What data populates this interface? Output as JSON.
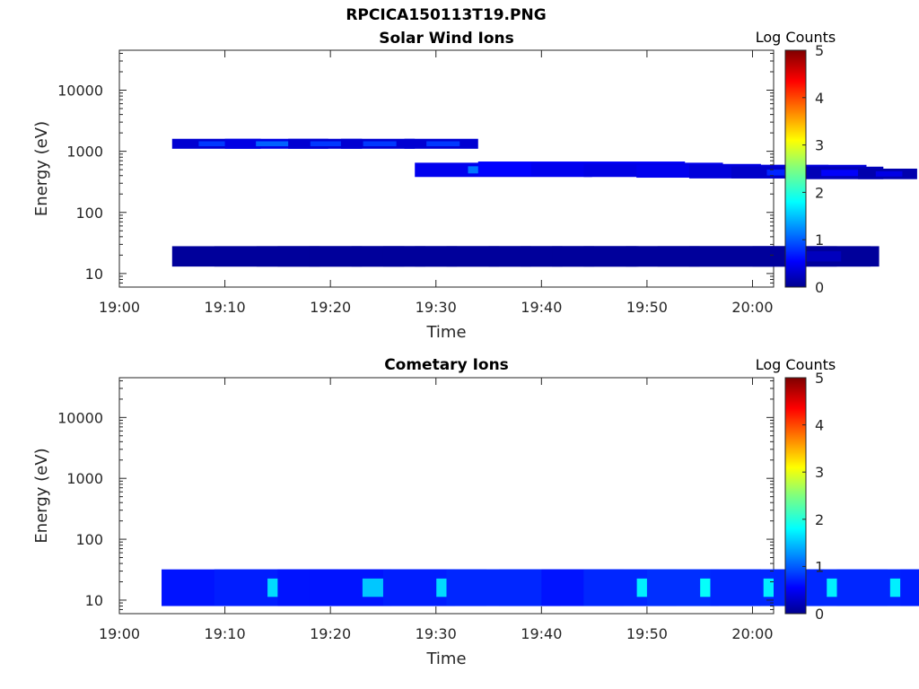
{
  "figure": {
    "filename": "RPCICA150113T19.PNG"
  },
  "chart_data": [
    {
      "type": "heatmap",
      "title": "Solar Wind Ions",
      "xlabel": "Time",
      "ylabel": "Energy (eV)",
      "xlim": [
        "19:00",
        "20:02"
      ],
      "ylim": [
        6,
        45000
      ],
      "yscale": "log",
      "x_ticks": [
        "19:00",
        "19:10",
        "19:20",
        "19:30",
        "19:40",
        "19:50",
        "20:00"
      ],
      "y_ticks": [
        "10",
        "100",
        "1000",
        "10000"
      ],
      "colorbar": {
        "label": "Log Counts",
        "range": [
          0,
          5
        ],
        "ticks": [
          "0",
          "1",
          "2",
          "3",
          "4",
          "5"
        ],
        "colormap": "jet"
      },
      "blocks": [
        {
          "t": 19.05,
          "w": 1.0,
          "e_lo": 13,
          "e_hi": 28,
          "v": 0.3
        },
        {
          "t": 19.09,
          "w": 1.0,
          "e_lo": 13,
          "e_hi": 28,
          "v": 0.3
        },
        {
          "t": 19.13,
          "w": 1.0,
          "e_lo": 13,
          "e_hi": 28,
          "v": 0.3
        },
        {
          "t": 19.15,
          "w": 1.0,
          "e_lo": 13,
          "e_hi": 28,
          "v": 0.3
        },
        {
          "t": 19.18,
          "w": 1.0,
          "e_lo": 13,
          "e_hi": 28,
          "v": 0.3
        },
        {
          "t": 19.22,
          "w": 1.0,
          "e_lo": 13,
          "e_hi": 28,
          "v": 0.3
        },
        {
          "t": 19.25,
          "w": 1.0,
          "e_lo": 13,
          "e_hi": 28,
          "v": 0.3
        },
        {
          "t": 19.28,
          "w": 1.0,
          "e_lo": 13,
          "e_hi": 28,
          "v": 0.3
        },
        {
          "t": 19.31,
          "w": 1.0,
          "e_lo": 13,
          "e_hi": 28,
          "v": 0.3
        },
        {
          "t": 19.35,
          "w": 1.0,
          "e_lo": 13,
          "e_hi": 28,
          "v": 0.3
        },
        {
          "t": 19.38,
          "w": 0.8,
          "e_lo": 13,
          "e_hi": 28,
          "v": 0.3
        },
        {
          "t": 19.41,
          "w": 1.0,
          "e_lo": 13,
          "e_hi": 28,
          "v": 0.3
        },
        {
          "t": 19.44,
          "w": 1.0,
          "e_lo": 13,
          "e_hi": 28,
          "v": 0.3
        },
        {
          "t": 19.48,
          "w": 1.0,
          "e_lo": 13,
          "e_hi": 28,
          "v": 0.3
        },
        {
          "t": 19.51,
          "w": 1.0,
          "e_lo": 13,
          "e_hi": 28,
          "v": 0.3
        },
        {
          "t": 19.54,
          "w": 1.0,
          "e_lo": 13,
          "e_hi": 28,
          "v": 0.3
        },
        {
          "t": 19.58,
          "w": 1.0,
          "e_lo": 13,
          "e_hi": 28,
          "v": 0.3
        },
        {
          "t": 20.0,
          "w": 0.8,
          "e_lo": 13,
          "e_hi": 28,
          "v": 0.3
        },
        {
          "t": 19.05,
          "w": 0.6,
          "e_lo": 1100,
          "e_hi": 1600,
          "v": 0.9
        },
        {
          "t": 19.1,
          "w": 0.7,
          "e_lo": 1100,
          "e_hi": 1600,
          "v": 1.1
        },
        {
          "t": 19.16,
          "w": 0.5,
          "e_lo": 1100,
          "e_hi": 1600,
          "v": 0.9
        },
        {
          "t": 19.21,
          "w": 0.5,
          "e_lo": 1100,
          "e_hi": 1600,
          "v": 0.9
        },
        {
          "t": 19.27,
          "w": 0.5,
          "e_lo": 1100,
          "e_hi": 1600,
          "v": 0.9
        },
        {
          "t": 19.28,
          "w": 1.2,
          "e_lo": 380,
          "e_hi": 650,
          "v": 1.2
        },
        {
          "t": 19.34,
          "w": 1.4,
          "e_lo": 400,
          "e_hi": 680,
          "v": 1.4
        },
        {
          "t": 19.39,
          "w": 1.3,
          "e_lo": 400,
          "e_hi": 650,
          "v": 1.2
        },
        {
          "t": 19.44,
          "w": 1.2,
          "e_lo": 380,
          "e_hi": 620,
          "v": 1.1
        },
        {
          "t": 19.49,
          "w": 1.3,
          "e_lo": 370,
          "e_hi": 600,
          "v": 1.2
        },
        {
          "t": 19.54,
          "w": 1.2,
          "e_lo": 360,
          "e_hi": 600,
          "v": 1.0
        },
        {
          "t": 19.58,
          "w": 0.8,
          "e_lo": 360,
          "e_hi": 560,
          "v": 0.8
        },
        {
          "t": 19.64,
          "w": 0.6,
          "e_lo": 350,
          "e_hi": 560,
          "v": 0.6
        },
        {
          "t": 19.7,
          "w": 0.4,
          "e_lo": 350,
          "e_hi": 520,
          "v": 0.5
        },
        {
          "t": 19.9,
          "w": 1.2,
          "e_lo": 380,
          "e_hi": 700,
          "v": 0.8
        },
        {
          "t": 19.96,
          "w": 0.8,
          "e_lo": 350,
          "e_hi": 550,
          "v": 0.6
        }
      ]
    },
    {
      "type": "heatmap",
      "title": "Cometary Ions",
      "xlabel": "Time",
      "ylabel": "Energy (eV)",
      "xlim": [
        "19:00",
        "20:02"
      ],
      "ylim": [
        6,
        45000
      ],
      "yscale": "log",
      "x_ticks": [
        "19:00",
        "19:10",
        "19:20",
        "19:30",
        "19:40",
        "19:50",
        "20:00"
      ],
      "y_ticks": [
        "10",
        "100",
        "1000",
        "10000"
      ],
      "colorbar": {
        "label": "Log Counts",
        "range": [
          0,
          5
        ],
        "ticks": [
          "0",
          "1",
          "2",
          "3",
          "4",
          "5"
        ],
        "colormap": "jet"
      },
      "blocks": [
        {
          "t": 19.04,
          "w": 1.2,
          "e_lo": 8,
          "e_hi": 32,
          "v": 1.6
        },
        {
          "t": 19.09,
          "w": 1.2,
          "e_lo": 8,
          "e_hi": 32,
          "v": 1.7
        },
        {
          "t": 19.15,
          "w": 1.2,
          "e_lo": 8,
          "e_hi": 32,
          "v": 1.6
        },
        {
          "t": 19.18,
          "w": 1.2,
          "e_lo": 8,
          "e_hi": 32,
          "v": 1.6
        },
        {
          "t": 19.25,
          "w": 1.2,
          "e_lo": 8,
          "e_hi": 32,
          "v": 1.7
        },
        {
          "t": 19.31,
          "w": 1.2,
          "e_lo": 8,
          "e_hi": 32,
          "v": 1.8
        },
        {
          "t": 19.36,
          "w": 1.2,
          "e_lo": 8,
          "e_hi": 32,
          "v": 1.8
        },
        {
          "t": 19.4,
          "w": 1.2,
          "e_lo": 8,
          "e_hi": 32,
          "v": 1.6
        },
        {
          "t": 19.44,
          "w": 1.2,
          "e_lo": 8,
          "e_hi": 32,
          "v": 1.8
        },
        {
          "t": 19.5,
          "w": 1.2,
          "e_lo": 8,
          "e_hi": 32,
          "v": 1.9
        },
        {
          "t": 19.56,
          "w": 1.2,
          "e_lo": 8,
          "e_hi": 32,
          "v": 1.8
        },
        {
          "t": 19.62,
          "w": 1.2,
          "e_lo": 8,
          "e_hi": 32,
          "v": 1.8
        },
        {
          "t": 19.68,
          "w": 1.2,
          "e_lo": 8,
          "e_hi": 32,
          "v": 1.8
        },
        {
          "t": 19.74,
          "w": 1.2,
          "e_lo": 8,
          "e_hi": 32,
          "v": 1.7
        },
        {
          "t": 19.8,
          "w": 1.2,
          "e_lo": 8,
          "e_hi": 32,
          "v": 1.8
        },
        {
          "t": 19.86,
          "w": 1.2,
          "e_lo": 8,
          "e_hi": 32,
          "v": 1.7
        },
        {
          "t": 19.92,
          "w": 1.2,
          "e_lo": 8,
          "e_hi": 32,
          "v": 1.6
        },
        {
          "t": 19.98,
          "w": 1.2,
          "e_lo": 8,
          "e_hi": 32,
          "v": 1.6
        }
      ]
    }
  ]
}
